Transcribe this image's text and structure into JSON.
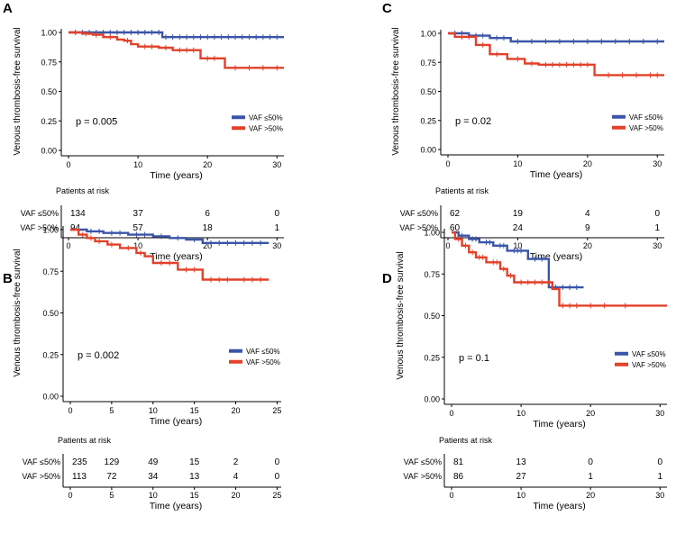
{
  "figure": {
    "colors": {
      "blue": "#3a55a8",
      "red": "#e2412a",
      "axis": "#000000"
    }
  },
  "chart_data": [
    {
      "type": "line",
      "panel_label": "A",
      "ylabel": "Venous thrombosis-free survival",
      "xlabel": "Time (years)",
      "xlim": [
        0,
        31
      ],
      "ylim": [
        0,
        1
      ],
      "x_ticks": [
        "0",
        "10",
        "20",
        "30"
      ],
      "y_ticks": [
        "0.00",
        "0.25",
        "0.50",
        "0.75",
        "1.00"
      ],
      "p_value": "p = 0.005",
      "legend": [
        "VAF ≤50%",
        "VAF >50%"
      ],
      "series": [
        {
          "name": "VAF ≤50%",
          "color": "#3a55a8",
          "steps": [
            [
              0,
              1
            ],
            [
              13.5,
              1
            ],
            [
              13.5,
              0.96
            ],
            [
              31,
              0.96
            ]
          ],
          "censor_x": [
            1,
            2,
            3,
            4,
            5,
            6,
            7,
            8,
            9,
            10,
            11,
            12,
            13,
            14,
            15,
            16,
            17,
            18,
            19,
            20,
            21,
            22,
            23,
            24,
            25,
            26,
            27,
            28,
            29,
            30
          ]
        },
        {
          "name": "VAF >50%",
          "color": "#e2412a",
          "steps": [
            [
              0,
              1
            ],
            [
              2,
              1
            ],
            [
              2,
              0.99
            ],
            [
              3.5,
              0.99
            ],
            [
              3.5,
              0.98
            ],
            [
              5,
              0.98
            ],
            [
              5,
              0.96
            ],
            [
              7,
              0.96
            ],
            [
              7,
              0.94
            ],
            [
              8,
              0.94
            ],
            [
              8,
              0.93
            ],
            [
              9,
              0.93
            ],
            [
              9,
              0.9
            ],
            [
              10,
              0.9
            ],
            [
              10,
              0.88
            ],
            [
              13,
              0.88
            ],
            [
              13,
              0.87
            ],
            [
              15,
              0.87
            ],
            [
              15,
              0.85
            ],
            [
              19,
              0.85
            ],
            [
              19,
              0.78
            ],
            [
              22.5,
              0.78
            ],
            [
              22.5,
              0.7
            ],
            [
              31,
              0.7
            ]
          ],
          "censor_x": [
            1,
            2.5,
            4,
            6,
            8.5,
            11,
            12,
            14,
            16,
            17,
            18,
            20,
            21,
            24,
            26,
            28,
            30
          ]
        }
      ],
      "risk_table": {
        "title": "Patients at risk",
        "rows": [
          {
            "label": "VAF ≤50%",
            "values": [
              "134",
              "37",
              "6",
              "0"
            ]
          },
          {
            "label": "VAF >50%",
            "values": [
              "94",
              "57",
              "18",
              "1"
            ]
          }
        ],
        "x_ticks": [
          "0",
          "10",
          "20",
          "30"
        ],
        "xlabel": "Time (years)"
      }
    },
    {
      "type": "line",
      "panel_label": "B",
      "ylabel": "Venous thrombosis-free survival",
      "xlabel": "Time (years)",
      "xlim": [
        0,
        25.5
      ],
      "ylim": [
        0,
        1
      ],
      "x_ticks": [
        "0",
        "5",
        "10",
        "15",
        "20",
        "25"
      ],
      "y_ticks": [
        "0.00",
        "0.25",
        "0.50",
        "0.75",
        "1.00"
      ],
      "p_value": "p = 0.002",
      "legend": [
        "VAF ≤50%",
        "VAF >50%"
      ],
      "series": [
        {
          "name": "VAF ≤50%",
          "color": "#3a55a8",
          "steps": [
            [
              0,
              1
            ],
            [
              2,
              1
            ],
            [
              2,
              0.99
            ],
            [
              4,
              0.99
            ],
            [
              4,
              0.98
            ],
            [
              7,
              0.98
            ],
            [
              7,
              0.97
            ],
            [
              10,
              0.97
            ],
            [
              10,
              0.96
            ],
            [
              12,
              0.96
            ],
            [
              12,
              0.95
            ],
            [
              14,
              0.95
            ],
            [
              14,
              0.94
            ],
            [
              16,
              0.94
            ],
            [
              16,
              0.92
            ],
            [
              24,
              0.92
            ]
          ],
          "censor_x": [
            1,
            2.5,
            3.5,
            5,
            6,
            8,
            9,
            11,
            13,
            15,
            17,
            18,
            19,
            20,
            21,
            22,
            23
          ]
        },
        {
          "name": "VAF >50%",
          "color": "#e2412a",
          "steps": [
            [
              0,
              1
            ],
            [
              1,
              1
            ],
            [
              1,
              0.97
            ],
            [
              2,
              0.97
            ],
            [
              2,
              0.95
            ],
            [
              3,
              0.95
            ],
            [
              3,
              0.93
            ],
            [
              4.5,
              0.93
            ],
            [
              4.5,
              0.91
            ],
            [
              6,
              0.91
            ],
            [
              6,
              0.89
            ],
            [
              8,
              0.89
            ],
            [
              8,
              0.86
            ],
            [
              9,
              0.86
            ],
            [
              9,
              0.84
            ],
            [
              10,
              0.84
            ],
            [
              10,
              0.8
            ],
            [
              13,
              0.8
            ],
            [
              13,
              0.76
            ],
            [
              16,
              0.76
            ],
            [
              16,
              0.7
            ],
            [
              24,
              0.7
            ]
          ],
          "censor_x": [
            1.5,
            2.5,
            3.5,
            5,
            7,
            8.5,
            11,
            12,
            14,
            15,
            17,
            18,
            19,
            21,
            22,
            23
          ]
        }
      ],
      "risk_table": {
        "title": "Patients at risk",
        "rows": [
          {
            "label": "VAF ≤50%",
            "values": [
              "235",
              "129",
              "49",
              "15",
              "2",
              "0"
            ]
          },
          {
            "label": "VAF >50%",
            "values": [
              "113",
              "72",
              "34",
              "13",
              "4",
              "0"
            ]
          }
        ],
        "x_ticks": [
          "0",
          "5",
          "10",
          "15",
          "20",
          "25"
        ],
        "xlabel": "Time (years)"
      }
    },
    {
      "type": "line",
      "panel_label": "C",
      "ylabel": "Venous thrombosis-free survival",
      "xlabel": "Time (years)",
      "xlim": [
        0,
        31
      ],
      "ylim": [
        0,
        1
      ],
      "x_ticks": [
        "0",
        "10",
        "20",
        "30"
      ],
      "y_ticks": [
        "0.00",
        "0.25",
        "0.50",
        "0.75",
        "1.00"
      ],
      "p_value": "p = 0.02",
      "legend": [
        "VAF ≤50%",
        "VAF >50%"
      ],
      "series": [
        {
          "name": "VAF ≤50%",
          "color": "#3a55a8",
          "steps": [
            [
              0,
              1
            ],
            [
              3,
              1
            ],
            [
              3,
              0.98
            ],
            [
              6,
              0.98
            ],
            [
              6,
              0.96
            ],
            [
              9,
              0.96
            ],
            [
              9,
              0.93
            ],
            [
              31,
              0.93
            ]
          ],
          "censor_x": [
            1,
            2,
            4,
            5,
            7,
            8,
            10,
            12,
            14,
            16,
            18,
            20,
            22,
            24,
            26,
            28,
            30
          ]
        },
        {
          "name": "VAF >50%",
          "color": "#e2412a",
          "steps": [
            [
              0,
              1
            ],
            [
              1,
              1
            ],
            [
              1,
              0.97
            ],
            [
              4,
              0.97
            ],
            [
              4,
              0.9
            ],
            [
              6,
              0.9
            ],
            [
              6,
              0.82
            ],
            [
              8.5,
              0.82
            ],
            [
              8.5,
              0.78
            ],
            [
              11,
              0.78
            ],
            [
              11,
              0.74
            ],
            [
              13,
              0.74
            ],
            [
              13,
              0.73
            ],
            [
              21,
              0.73
            ],
            [
              21,
              0.64
            ],
            [
              31,
              0.64
            ]
          ],
          "censor_x": [
            2,
            3,
            5,
            7,
            10,
            12,
            14,
            15,
            16,
            17,
            18,
            19,
            20,
            23,
            25,
            27,
            29,
            30
          ]
        }
      ],
      "risk_table": {
        "title": "Patients at risk",
        "rows": [
          {
            "label": "VAF ≤50%",
            "values": [
              "62",
              "19",
              "4",
              "0"
            ]
          },
          {
            "label": "VAF >50%",
            "values": [
              "60",
              "24",
              "9",
              "1"
            ]
          }
        ],
        "x_ticks": [
          "0",
          "10",
          "20",
          "30"
        ],
        "xlabel": "Time (years)"
      }
    },
    {
      "type": "line",
      "panel_label": "D",
      "ylabel": "Venous thrombosis-free survival",
      "xlabel": "Time (years)",
      "xlim": [
        0,
        31
      ],
      "ylim": [
        0,
        1
      ],
      "x_ticks": [
        "0",
        "10",
        "20",
        "30"
      ],
      "y_ticks": [
        "0.00",
        "0.25",
        "0.50",
        "0.75",
        "1.00"
      ],
      "p_value": "p = 0.1",
      "legend": [
        "VAF ≤50%",
        "VAF >50%"
      ],
      "series": [
        {
          "name": "VAF ≤50%",
          "color": "#3a55a8",
          "steps": [
            [
              0,
              1
            ],
            [
              1,
              1
            ],
            [
              1,
              0.98
            ],
            [
              2.5,
              0.98
            ],
            [
              2.5,
              0.96
            ],
            [
              4,
              0.96
            ],
            [
              4,
              0.94
            ],
            [
              6,
              0.94
            ],
            [
              6,
              0.92
            ],
            [
              8,
              0.92
            ],
            [
              8,
              0.89
            ],
            [
              11,
              0.89
            ],
            [
              11,
              0.84
            ],
            [
              14,
              0.84
            ],
            [
              14,
              0.67
            ],
            [
              19,
              0.67
            ]
          ],
          "censor_x": [
            1.5,
            3,
            3.5,
            5,
            5.5,
            7,
            7.5,
            9,
            9.5,
            10,
            12,
            13,
            15,
            16,
            17,
            18
          ]
        },
        {
          "name": "VAF >50%",
          "color": "#e2412a",
          "steps": [
            [
              0,
              1
            ],
            [
              0.5,
              1
            ],
            [
              0.5,
              0.96
            ],
            [
              1.5,
              0.96
            ],
            [
              1.5,
              0.92
            ],
            [
              2.5,
              0.92
            ],
            [
              2.5,
              0.88
            ],
            [
              3.5,
              0.88
            ],
            [
              3.5,
              0.85
            ],
            [
              5,
              0.85
            ],
            [
              5,
              0.82
            ],
            [
              7,
              0.82
            ],
            [
              7,
              0.78
            ],
            [
              8,
              0.78
            ],
            [
              8,
              0.74
            ],
            [
              9,
              0.74
            ],
            [
              9,
              0.7
            ],
            [
              14.5,
              0.7
            ],
            [
              14.5,
              0.66
            ],
            [
              15.5,
              0.66
            ],
            [
              15.5,
              0.56
            ],
            [
              31,
              0.56
            ]
          ],
          "censor_x": [
            1,
            2,
            3,
            4,
            4.5,
            6,
            6.5,
            7.5,
            8.5,
            10,
            11,
            12,
            13,
            14,
            16,
            17,
            18,
            20,
            22,
            25
          ]
        }
      ],
      "risk_table": {
        "title": "Patients at risk",
        "rows": [
          {
            "label": "VAF ≤50%",
            "values": [
              "81",
              "13",
              "0",
              "0"
            ]
          },
          {
            "label": "VAF >50%",
            "values": [
              "86",
              "27",
              "1",
              "1"
            ]
          }
        ],
        "x_ticks": [
          "0",
          "10",
          "20",
          "30"
        ],
        "xlabel": "Time (years)"
      }
    }
  ]
}
